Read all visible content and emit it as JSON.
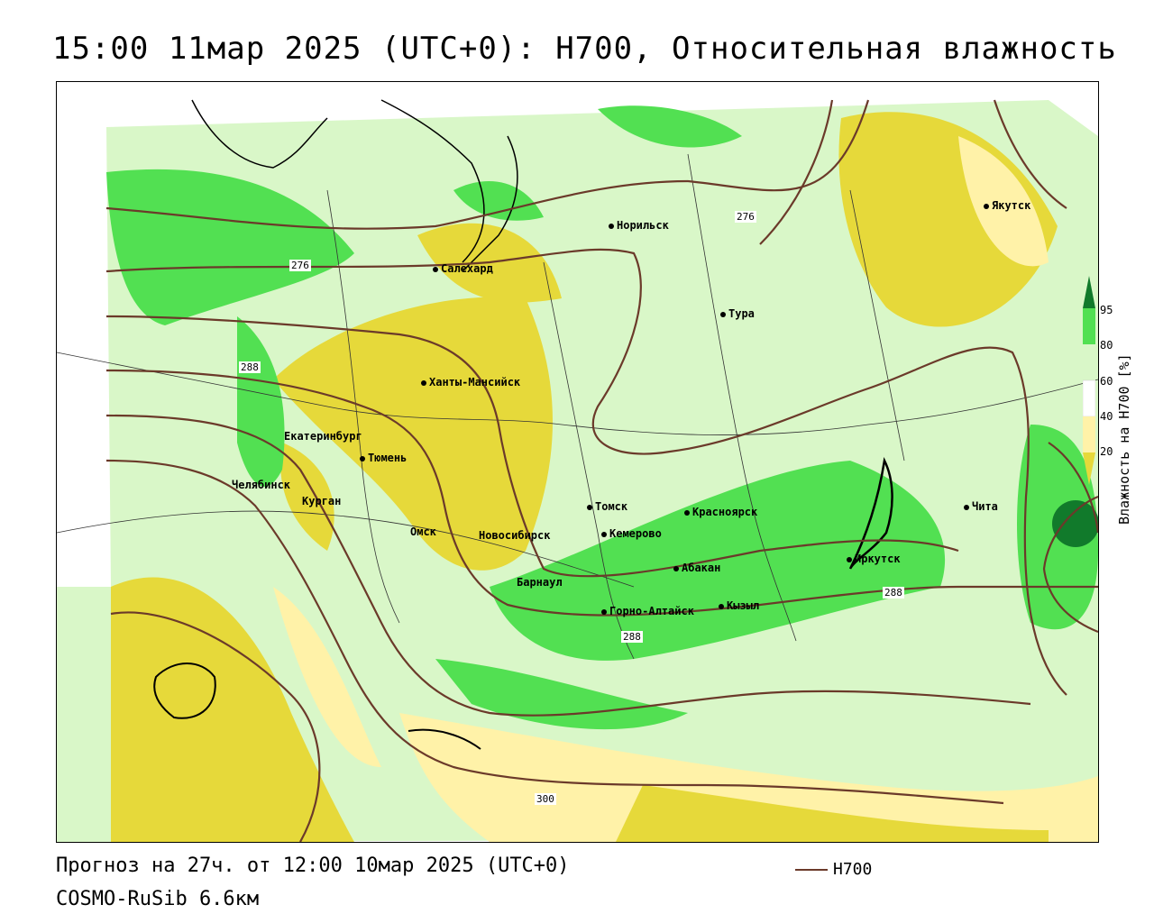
{
  "header": {
    "title": "15:00 11мар 2025 (UTC+0): H700, Относительная влажность"
  },
  "map": {
    "cities": [
      {
        "name": "Норильск"
      },
      {
        "name": "Салехард"
      },
      {
        "name": "Тура"
      },
      {
        "name": "Якутск"
      },
      {
        "name": "Ханты-Мансийск"
      },
      {
        "name": "Екатеринбург"
      },
      {
        "name": "Тюмень"
      },
      {
        "name": "Челябинск"
      },
      {
        "name": "Курган"
      },
      {
        "name": "Омск"
      },
      {
        "name": "Новосибирск"
      },
      {
        "name": "Томск"
      },
      {
        "name": "Кемерово"
      },
      {
        "name": "Красноярск"
      },
      {
        "name": "Абакан"
      },
      {
        "name": "Барнаул"
      },
      {
        "name": "Горно-Алтайск"
      },
      {
        "name": "Кызыл"
      },
      {
        "name": "Иркутск"
      },
      {
        "name": "Чита"
      }
    ],
    "contour_labels": [
      "276",
      "276",
      "288",
      "288",
      "288",
      "300"
    ]
  },
  "colorbar": {
    "title": "Влажность на H700 [%]",
    "ticks": [
      "95",
      "80",
      "60",
      "40",
      "20"
    ],
    "colors": [
      "#117a2b",
      "#52e052",
      "#d9f7c8",
      "#ffffff",
      "#fff2a8",
      "#e6d93a"
    ]
  },
  "footer": {
    "forecast": "Прогноз на 27ч. от 12:00 10мар 2025 (UTC+0)",
    "model": "COSMO-RuSib 6.6км",
    "legend_label": "H700"
  }
}
